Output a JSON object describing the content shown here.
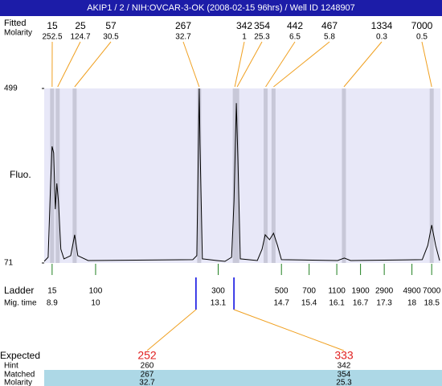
{
  "chart_data": {
    "type": "electropherogram",
    "title": "AKIP1 / 2 / NIH:OVCAR-3-OK (2008-02-15 96hrs) / Well ID 1248907",
    "y_label": "Fluo.",
    "ylim": [
      71,
      499
    ],
    "yticks": [
      71,
      499
    ],
    "xlim": [
      8.7,
      18.72
    ],
    "trace": {
      "x": [
        8.7,
        8.8,
        8.86,
        8.9,
        8.94,
        8.98,
        9.02,
        9.06,
        9.12,
        9.2,
        9.37,
        9.47,
        9.55,
        9.81,
        12.46,
        12.56,
        12.6,
        12.62,
        12.64,
        12.7,
        13.07,
        13.27,
        13.44,
        13.5,
        13.56,
        13.6,
        13.66,
        14.09,
        14.21,
        14.29,
        14.4,
        14.5,
        14.6,
        14.7,
        16.12,
        16.29,
        16.45,
        18.26,
        18.4,
        18.5,
        18.6,
        18.7
      ],
      "values": [
        75,
        85,
        262,
        357,
        341,
        203,
        266,
        223,
        105,
        81,
        89,
        140,
        89,
        77,
        79,
        89,
        361,
        499,
        361,
        81,
        77,
        75,
        85,
        223,
        463,
        321,
        81,
        77,
        105,
        140,
        128,
        144,
        114,
        79,
        77,
        83,
        77,
        79,
        114,
        164,
        114,
        77
      ]
    },
    "peaks": {
      "size_label": "Fitted",
      "molarity_label": "Molarity",
      "sizes": [
        15,
        25,
        57,
        267,
        342,
        354,
        442,
        467,
        1334,
        7000
      ],
      "molarities": [
        252.5,
        124.7,
        30.5,
        32.7,
        1,
        25.3,
        6.5,
        5.8,
        0.3,
        0.5
      ],
      "migration_times": [
        8.9,
        9.04,
        9.47,
        12.62,
        13.52,
        13.58,
        14.3,
        14.5,
        16.28,
        18.5
      ]
    },
    "ladder": {
      "label": "Ladder",
      "time_label": "Mig. time",
      "sizes": [
        15,
        100,
        300,
        500,
        700,
        1100,
        1900,
        2900,
        4900,
        7000
      ],
      "migration_times": [
        8.9,
        10,
        13.1,
        14.7,
        15.4,
        16.1,
        16.7,
        17.3,
        18,
        18.5
      ]
    },
    "matching": {
      "expected_label": "Expected",
      "hint_label": "Hint",
      "matched_label": "Matched",
      "molarity_label": "Molarity",
      "expected": [
        252,
        333
      ],
      "hint": [
        260,
        342
      ],
      "matched": [
        267,
        354
      ],
      "molarity": [
        32.7,
        25.3
      ]
    }
  }
}
